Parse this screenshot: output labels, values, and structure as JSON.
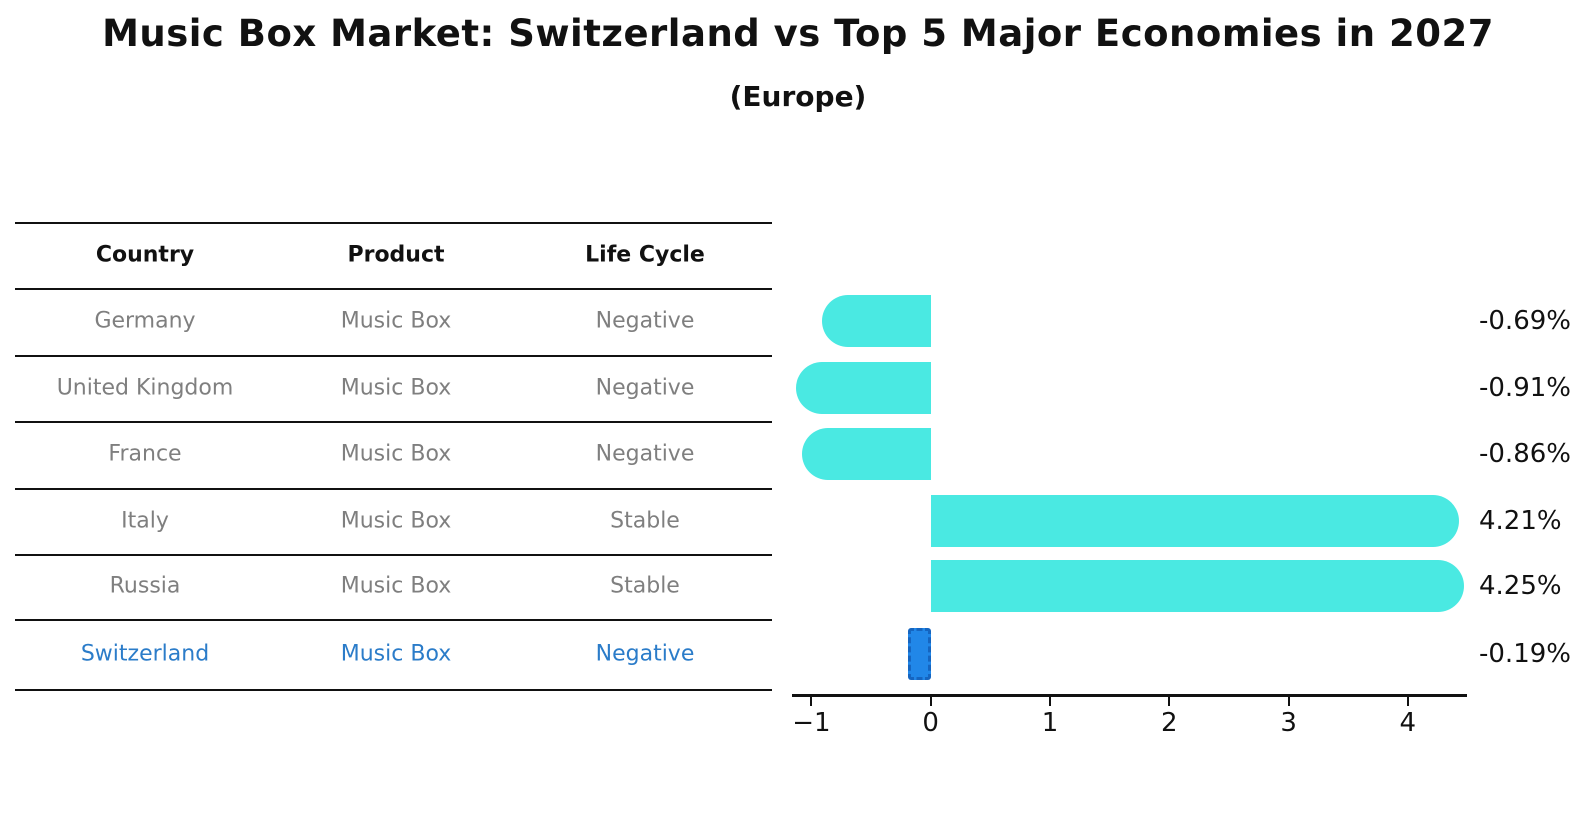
{
  "title": "Music Box Market: Switzerland vs Top 5 Major Economies in 2027",
  "subtitle": "(Europe)",
  "table": {
    "headers": [
      "Country",
      "Product",
      "Life Cycle"
    ],
    "rows": [
      {
        "country": "Germany",
        "product": "Music Box",
        "life_cycle": "Negative",
        "highlight": false
      },
      {
        "country": "United Kingdom",
        "product": "Music Box",
        "life_cycle": "Negative",
        "highlight": false
      },
      {
        "country": "France",
        "product": "Music Box",
        "life_cycle": "Negative",
        "highlight": false
      },
      {
        "country": "Italy",
        "product": "Music Box",
        "life_cycle": "Stable",
        "highlight": false
      },
      {
        "country": "Russia",
        "product": "Music Box",
        "life_cycle": "Stable",
        "highlight": false
      },
      {
        "country": "Switzerland",
        "product": "Music Box",
        "life_cycle": "Negative",
        "highlight": true
      }
    ]
  },
  "chart_data": {
    "type": "bar",
    "orientation": "horizontal",
    "title": "Music Box Market: Switzerland vs Top 5 Major Economies in 2027 (Europe)",
    "categories": [
      "Germany",
      "United Kingdom",
      "France",
      "Italy",
      "Russia",
      "Switzerland"
    ],
    "values": [
      -0.69,
      -0.91,
      -0.86,
      4.21,
      4.25,
      -0.19
    ],
    "value_labels": [
      "-0.69%",
      "-0.91%",
      "-0.86%",
      "4.21%",
      "4.25%",
      "-0.19%"
    ],
    "unit": "percent",
    "xlim": [
      -1.163,
      4.496
    ],
    "x_ticks": [
      -1,
      0,
      1,
      2,
      3,
      4
    ],
    "x_tick_labels": [
      "−1",
      "0",
      "1",
      "2",
      "3",
      "4"
    ],
    "grid": false,
    "legend": false,
    "highlight_index": 5,
    "bar_color_default": "#4AE9E2",
    "bar_color_highlight": "#2187E8",
    "highlight_border_color": "#1565C0"
  },
  "colors": {
    "background": "#ffffff",
    "header_text": "#111111",
    "row_text": "#7f7f7f",
    "highlight_text": "#2B7CC9",
    "axis": "#111111",
    "bar": "#4AE9E2",
    "highlight_bar": "#2187E8",
    "highlight_border": "#1565C0"
  }
}
